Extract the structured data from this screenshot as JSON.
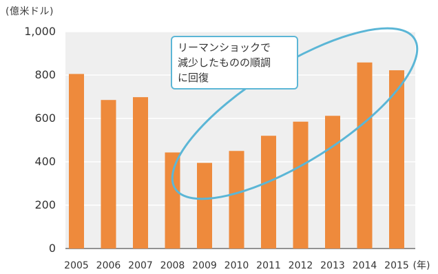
{
  "chart_data": {
    "type": "bar",
    "unit_label": "(億米ドル)",
    "categories": [
      "2005",
      "2006",
      "2007",
      "2008",
      "2009",
      "2010",
      "2011",
      "2012",
      "2013",
      "2014",
      "2015"
    ],
    "values": [
      805,
      685,
      698,
      443,
      395,
      450,
      520,
      585,
      612,
      858,
      822
    ],
    "x_unit_label": "(年)",
    "ylim": [
      0,
      1000
    ],
    "yticks": [
      0,
      200,
      400,
      600,
      800,
      1000
    ],
    "ytick_labels": [
      "0",
      "200",
      "400",
      "600",
      "800",
      "1,000"
    ],
    "grid": true,
    "colors": {
      "bar": "#ee8a3c",
      "plot_background": "#efefef",
      "grid": "#ffffff",
      "annotation": "#5bb6d6"
    },
    "annotation": {
      "lines": [
        "リーマンショックで",
        "減少したものの順調",
        "に回復"
      ]
    }
  }
}
